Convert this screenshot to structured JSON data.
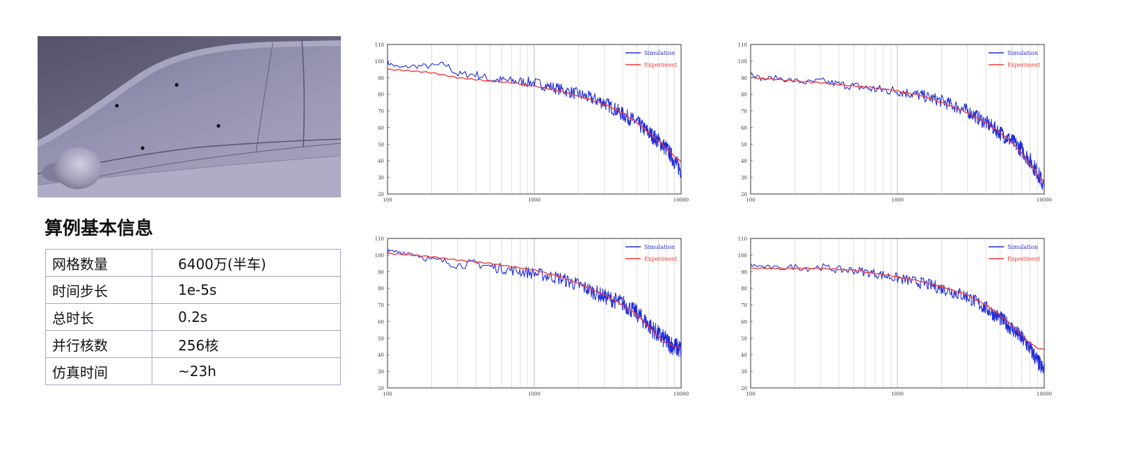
{
  "info_panel": {
    "title": "算例基本信息",
    "rows": [
      {
        "key": "网格数量",
        "value": "6400万(半车)"
      },
      {
        "key": "时间步长",
        "value": "1e-5s"
      },
      {
        "key": "总时长",
        "value": "0.2s"
      },
      {
        "key": "并行核数",
        "value": "256核"
      },
      {
        "key": "仿真时间",
        "value": "~23h"
      }
    ]
  },
  "colors": {
    "simulation": "#1f2bd6",
    "experiment": "#f03a3a",
    "grid": "#d9d9d9"
  },
  "chart_data": [
    {
      "type": "line",
      "xscale": "log",
      "xlim": [
        100,
        10000
      ],
      "ylim": [
        20,
        110
      ],
      "xticks": [
        100,
        1000,
        10000
      ],
      "xtick_labels": [
        "100",
        "1000",
        "10000"
      ],
      "yticks": [
        20,
        30,
        40,
        50,
        60,
        70,
        80,
        90,
        100,
        110
      ],
      "grid": "vertical",
      "legend": "top-right",
      "series": [
        {
          "name": "Simulation",
          "x": [
            100,
            120,
            150,
            200,
            250,
            300,
            400,
            500,
            700,
            1000,
            1500,
            2000,
            3000,
            4000,
            5000,
            6000,
            7000,
            8000,
            9000,
            10000
          ],
          "values": [
            99,
            96,
            97,
            97,
            98,
            92,
            92,
            89,
            88,
            87,
            83,
            80,
            75,
            68,
            63,
            57,
            52,
            47,
            40,
            34
          ],
          "noise": 3.5
        },
        {
          "name": "Experiment",
          "x": [
            100,
            150,
            200,
            300,
            500,
            700,
            1000,
            1500,
            2000,
            3000,
            4000,
            5000,
            6000,
            7000,
            8000,
            9000,
            10000
          ],
          "values": [
            95,
            94,
            93,
            90,
            88,
            87,
            85,
            82,
            79,
            74,
            69,
            63,
            57,
            52,
            47,
            43,
            39
          ]
        }
      ]
    },
    {
      "type": "line",
      "xscale": "log",
      "xlim": [
        100,
        10000
      ],
      "ylim": [
        20,
        110
      ],
      "xticks": [
        100,
        1000,
        10000
      ],
      "xtick_labels": [
        "100",
        "1000",
        "10000"
      ],
      "yticks": [
        20,
        30,
        40,
        50,
        60,
        70,
        80,
        90,
        100,
        110
      ],
      "grid": "vertical",
      "legend": "top-right",
      "series": [
        {
          "name": "Simulation",
          "x": [
            100,
            120,
            150,
            200,
            250,
            300,
            400,
            500,
            700,
            1000,
            1500,
            2000,
            3000,
            4000,
            5000,
            6000,
            7000,
            8000,
            9000,
            10000
          ],
          "values": [
            93,
            89,
            90,
            88,
            87,
            88,
            86,
            85,
            83,
            82,
            79,
            76,
            70,
            63,
            57,
            52,
            47,
            40,
            33,
            24
          ],
          "noise": 3.5
        },
        {
          "name": "Experiment",
          "x": [
            100,
            150,
            200,
            300,
            500,
            700,
            1000,
            1500,
            2000,
            3000,
            4000,
            5000,
            6000,
            7000,
            8000,
            9000,
            10000
          ],
          "values": [
            90,
            89,
            88,
            87,
            85,
            84,
            82,
            79,
            75,
            69,
            63,
            57,
            51,
            45,
            38,
            32,
            27
          ]
        }
      ]
    },
    {
      "type": "line",
      "xscale": "log",
      "xlim": [
        100,
        10000
      ],
      "ylim": [
        20,
        110
      ],
      "xticks": [
        100,
        1000,
        10000
      ],
      "xtick_labels": [
        "100",
        "1000",
        "10000"
      ],
      "yticks": [
        20,
        30,
        40,
        50,
        60,
        70,
        80,
        90,
        100,
        110
      ],
      "grid": "vertical",
      "legend": "top-right",
      "series": [
        {
          "name": "Simulation",
          "x": [
            100,
            120,
            150,
            200,
            250,
            300,
            400,
            500,
            700,
            1000,
            1500,
            2000,
            3000,
            4000,
            5000,
            6000,
            7000,
            8000,
            9000,
            10000
          ],
          "values": [
            102,
            102,
            101,
            97,
            96,
            94,
            95,
            93,
            91,
            89,
            86,
            82,
            75,
            71,
            65,
            58,
            52,
            48,
            45,
            43
          ],
          "noise": 4
        },
        {
          "name": "Experiment",
          "x": [
            100,
            150,
            200,
            300,
            500,
            700,
            1000,
            1500,
            2000,
            3000,
            4000,
            5000,
            6000,
            7000,
            8000,
            9000,
            10000
          ],
          "values": [
            101,
            100,
            99,
            97,
            95,
            93,
            91,
            87,
            83,
            76,
            70,
            64,
            57,
            51,
            47,
            45,
            44
          ]
        }
      ]
    },
    {
      "type": "line",
      "xscale": "log",
      "xlim": [
        100,
        10000
      ],
      "ylim": [
        20,
        110
      ],
      "xticks": [
        100,
        1000,
        10000
      ],
      "xtick_labels": [
        "100",
        "1000",
        "10000"
      ],
      "yticks": [
        20,
        30,
        40,
        50,
        60,
        70,
        80,
        90,
        100,
        110
      ],
      "grid": "vertical",
      "legend": "top-right",
      "series": [
        {
          "name": "Simulation",
          "x": [
            100,
            120,
            150,
            200,
            250,
            300,
            400,
            500,
            700,
            1000,
            1500,
            2000,
            3000,
            4000,
            5000,
            6000,
            7000,
            8000,
            9000,
            10000
          ],
          "values": [
            94,
            93,
            92,
            93,
            92,
            93,
            91,
            91,
            89,
            86,
            83,
            80,
            75,
            68,
            62,
            56,
            50,
            44,
            36,
            30
          ],
          "noise": 3.5
        },
        {
          "name": "Experiment",
          "x": [
            100,
            150,
            200,
            300,
            500,
            700,
            1000,
            1500,
            2000,
            3000,
            4000,
            5000,
            6000,
            7000,
            8000,
            9000,
            10000
          ],
          "values": [
            92,
            92,
            92,
            92,
            91,
            89,
            87,
            84,
            81,
            76,
            70,
            64,
            58,
            52,
            47,
            44,
            43
          ]
        }
      ]
    }
  ]
}
